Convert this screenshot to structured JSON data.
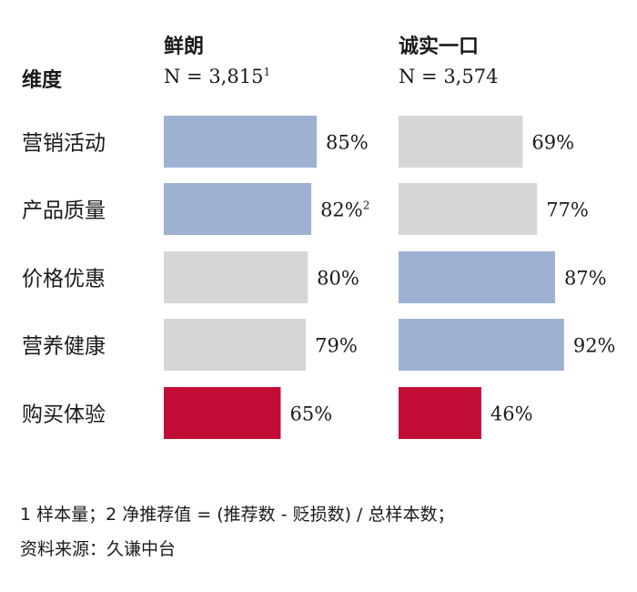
{
  "colors": {
    "highlight": "#9eb1d2",
    "neutral": "#d6d6d6",
    "low": "#c10d36",
    "text": "#1a1a1a"
  },
  "chart_data": {
    "type": "bar",
    "orientation": "horizontal",
    "dimension_header": "维度",
    "categories": [
      "营销活动",
      "产品质量",
      "价格优惠",
      "营养健康",
      "购买体验"
    ],
    "series": [
      {
        "name": "鲜朗",
        "sample": "N = 3,815",
        "sample_note": "1",
        "values": [
          85,
          82,
          80,
          79,
          65
        ],
        "labels": [
          "85%",
          "82%",
          "80%",
          "79%",
          "65%"
        ],
        "label_notes": [
          "",
          "2",
          "",
          "",
          ""
        ],
        "color_roles": [
          "highlight",
          "highlight",
          "neutral",
          "neutral",
          "low"
        ]
      },
      {
        "name": "诚实一口",
        "sample": "N = 3,574",
        "sample_note": "",
        "values": [
          69,
          77,
          87,
          92,
          46
        ],
        "labels": [
          "69%",
          "77%",
          "87%",
          "92%",
          "46%"
        ],
        "label_notes": [
          "",
          "",
          "",
          "",
          ""
        ],
        "color_roles": [
          "neutral",
          "neutral",
          "highlight",
          "highlight",
          "low"
        ]
      }
    ],
    "xlim": [
      0,
      100
    ]
  },
  "footnotes": {
    "line1": "1 样本量；2 净推荐值 = (推荐数 - 贬损数) / 总样本数；",
    "line2": "资料来源：久谦中台"
  }
}
